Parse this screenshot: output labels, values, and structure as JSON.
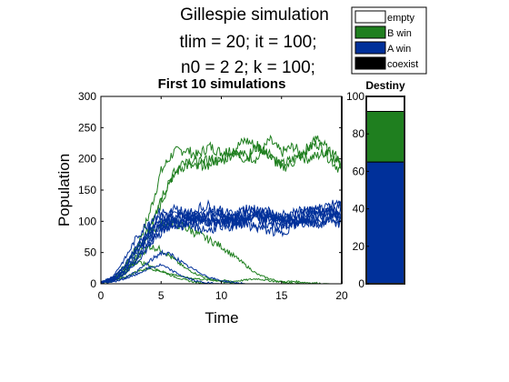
{
  "header": {
    "title_line1": "Gillespie simulation",
    "title_line2": "tlim = 20;  it = 100;",
    "title_line3": "n0 = 2  2;  k = 100;"
  },
  "legend": {
    "items": [
      {
        "label": "empty",
        "color": "#ffffff"
      },
      {
        "label": "B win",
        "color": "#1f7f1f"
      },
      {
        "label": "A win",
        "color": "#00309a"
      },
      {
        "label": "coexist",
        "color": "#000000"
      }
    ]
  },
  "chart_data": [
    {
      "type": "line",
      "title": "First 10 simulations",
      "xlabel": "Time",
      "ylabel": "Population",
      "xlim": [
        0,
        20
      ],
      "ylim": [
        0,
        300
      ],
      "xticks": [
        0,
        5,
        10,
        15,
        20
      ],
      "yticks": [
        0,
        50,
        100,
        150,
        200,
        250,
        300
      ],
      "grid": false,
      "colors": {
        "A": "#00309a",
        "B": "#1f7f1f"
      },
      "series": [
        {
          "group": "B",
          "x": [
            0,
            1,
            2,
            3,
            4,
            5,
            6,
            7,
            8,
            9,
            10,
            11,
            12,
            13,
            14,
            15,
            16,
            17,
            18,
            19,
            20
          ],
          "values": [
            2,
            8,
            25,
            60,
            110,
            180,
            210,
            215,
            205,
            220,
            210,
            215,
            205,
            200,
            230,
            210,
            220,
            200,
            205,
            215,
            195
          ]
        },
        {
          "group": "B",
          "x": [
            0,
            1,
            2,
            3,
            4,
            5,
            6,
            7,
            8,
            9,
            10,
            11,
            12,
            13,
            14,
            15,
            16,
            17,
            18,
            19,
            20
          ],
          "values": [
            2,
            5,
            15,
            40,
            80,
            130,
            175,
            200,
            195,
            190,
            205,
            215,
            230,
            220,
            210,
            190,
            200,
            215,
            225,
            200,
            180
          ]
        },
        {
          "group": "B",
          "x": [
            0,
            1,
            2,
            3,
            4,
            5,
            6,
            7,
            8,
            9,
            10,
            11,
            12,
            13,
            14,
            15,
            16,
            17,
            18,
            19,
            20
          ],
          "values": [
            2,
            6,
            18,
            45,
            90,
            140,
            175,
            190,
            185,
            200,
            195,
            210,
            200,
            220,
            205,
            185,
            195,
            210,
            235,
            210,
            190
          ]
        },
        {
          "group": "B",
          "x": [
            0,
            1,
            2,
            3,
            4,
            5,
            6,
            7,
            8,
            9,
            10,
            11,
            12,
            13,
            14,
            15,
            16,
            17,
            18,
            19,
            20
          ],
          "values": [
            2,
            10,
            30,
            55,
            80,
            95,
            100,
            90,
            80,
            70,
            60,
            45,
            30,
            15,
            8,
            3,
            1,
            0,
            0,
            0,
            0
          ]
        },
        {
          "group": "B",
          "x": [
            0,
            1,
            2,
            3,
            4,
            5,
            6,
            7,
            8,
            9,
            10,
            11,
            12,
            13,
            14,
            15,
            16,
            17,
            18,
            19,
            20
          ],
          "values": [
            2,
            6,
            20,
            40,
            60,
            55,
            40,
            25,
            15,
            8,
            3,
            1,
            0,
            0,
            0,
            0,
            0,
            0,
            0,
            0,
            0
          ]
        },
        {
          "group": "B",
          "x": [
            0,
            1,
            2,
            3,
            4,
            5,
            6,
            7,
            8,
            9,
            10,
            11,
            12,
            13,
            14,
            15,
            16,
            17,
            18,
            19,
            20
          ],
          "values": [
            2,
            4,
            10,
            20,
            25,
            20,
            12,
            6,
            2,
            0,
            0,
            0,
            0,
            0,
            0,
            0,
            0,
            0,
            0,
            0,
            0
          ]
        },
        {
          "group": "B",
          "x": [
            0,
            1,
            2,
            3,
            4,
            5,
            6,
            7,
            8,
            9,
            10,
            11,
            12,
            13,
            14,
            15,
            16,
            17,
            18,
            19,
            20
          ],
          "values": [
            2,
            8,
            22,
            35,
            30,
            20,
            15,
            10,
            8,
            6,
            5,
            4,
            6,
            8,
            5,
            3,
            4,
            2,
            1,
            0,
            0
          ]
        },
        {
          "group": "A",
          "x": [
            0,
            1,
            2,
            3,
            4,
            5,
            6,
            7,
            8,
            9,
            10,
            11,
            12,
            13,
            14,
            15,
            16,
            17,
            18,
            19,
            20
          ],
          "values": [
            2,
            8,
            25,
            55,
            80,
            95,
            100,
            110,
            105,
            100,
            115,
            110,
            100,
            95,
            105,
            110,
            100,
            105,
            115,
            110,
            120
          ]
        },
        {
          "group": "A",
          "x": [
            0,
            1,
            2,
            3,
            4,
            5,
            6,
            7,
            8,
            9,
            10,
            11,
            12,
            13,
            14,
            15,
            16,
            17,
            18,
            19,
            20
          ],
          "values": [
            2,
            12,
            40,
            75,
            100,
            115,
            110,
            105,
            120,
            125,
            115,
            100,
            110,
            120,
            105,
            100,
            115,
            120,
            110,
            125,
            130
          ]
        },
        {
          "group": "A",
          "x": [
            0,
            1,
            2,
            3,
            4,
            5,
            6,
            7,
            8,
            9,
            10,
            11,
            12,
            13,
            14,
            15,
            16,
            17,
            18,
            19,
            20
          ],
          "values": [
            2,
            6,
            20,
            45,
            70,
            90,
            105,
            115,
            110,
            100,
            95,
            105,
            120,
            110,
            100,
            95,
            105,
            115,
            120,
            115,
            105
          ]
        },
        {
          "group": "A",
          "x": [
            0,
            1,
            2,
            3,
            4,
            5,
            6,
            7,
            8,
            9,
            10,
            11,
            12,
            13,
            14,
            15,
            16,
            17,
            18,
            19,
            20
          ],
          "values": [
            2,
            10,
            30,
            60,
            90,
            105,
            95,
            90,
            100,
            110,
            105,
            95,
            100,
            110,
            95,
            90,
            100,
            105,
            95,
            100,
            110
          ]
        },
        {
          "group": "A",
          "x": [
            0,
            1,
            2,
            3,
            4,
            5,
            6,
            7,
            8,
            9,
            10,
            11,
            12,
            13,
            14,
            15,
            16,
            17,
            18,
            19,
            20
          ],
          "values": [
            2,
            5,
            15,
            35,
            60,
            85,
            100,
            95,
            105,
            115,
            110,
            100,
            105,
            115,
            110,
            105,
            110,
            115,
            120,
            115,
            100
          ]
        },
        {
          "group": "A",
          "x": [
            0,
            1,
            2,
            3,
            4,
            5,
            6,
            7,
            8,
            9,
            10,
            11,
            12,
            13,
            14,
            15,
            16,
            17,
            18,
            19,
            20
          ],
          "values": [
            2,
            7,
            22,
            50,
            75,
            100,
            120,
            115,
            105,
            95,
            100,
            110,
            120,
            115,
            110,
            100,
            95,
            105,
            100,
            110,
            115
          ]
        },
        {
          "group": "A",
          "x": [
            0,
            1,
            2,
            3,
            4,
            5,
            6,
            7,
            8,
            9,
            10,
            11,
            12,
            13,
            14,
            15,
            16,
            17,
            18,
            19,
            20
          ],
          "values": [
            2,
            9,
            28,
            58,
            85,
            95,
            105,
            110,
            100,
            105,
            95,
            90,
            100,
            110,
            115,
            105,
            100,
            95,
            105,
            120,
            125
          ]
        },
        {
          "group": "A",
          "x": [
            0,
            1,
            2,
            3,
            4,
            5,
            6,
            7,
            8,
            9,
            10,
            11,
            12,
            13,
            14,
            15,
            16,
            17,
            18,
            19,
            20
          ],
          "values": [
            2,
            6,
            18,
            40,
            65,
            80,
            95,
            100,
            90,
            85,
            95,
            100,
            95,
            90,
            85,
            80,
            95,
            100,
            95,
            105,
            95
          ]
        },
        {
          "group": "A",
          "x": [
            0,
            1,
            2,
            3,
            4,
            5,
            6,
            7,
            8,
            9,
            10,
            11,
            12,
            13,
            14,
            15,
            16,
            17,
            18,
            19,
            20
          ],
          "values": [
            2,
            4,
            10,
            20,
            35,
            50,
            45,
            30,
            20,
            10,
            5,
            2,
            0,
            0,
            0,
            0,
            0,
            0,
            0,
            0,
            0
          ]
        },
        {
          "group": "A",
          "x": [
            0,
            1,
            2,
            3,
            4,
            5,
            6,
            7,
            8,
            9,
            10,
            11,
            12,
            13,
            14,
            15,
            16,
            17,
            18,
            19,
            20
          ],
          "values": [
            2,
            3,
            8,
            15,
            25,
            30,
            20,
            10,
            4,
            1,
            0,
            0,
            0,
            0,
            0,
            0,
            0,
            0,
            0,
            0,
            0
          ]
        }
      ]
    },
    {
      "type": "bar",
      "title": "Destiny",
      "stacked": true,
      "ylim": [
        0,
        100
      ],
      "yticks": [
        0,
        20,
        40,
        60,
        80,
        100
      ],
      "segments": [
        {
          "label": "A win",
          "value": 65,
          "color": "#00309a"
        },
        {
          "label": "B win",
          "value": 27,
          "color": "#1f7f1f"
        },
        {
          "label": "empty",
          "value": 8,
          "color": "#ffffff"
        }
      ]
    }
  ]
}
